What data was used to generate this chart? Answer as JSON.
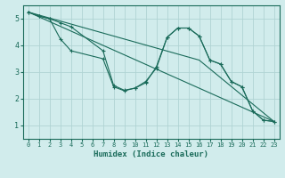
{
  "bg_color": "#d1ecec",
  "grid_color": "#b0d4d4",
  "line_color": "#1a6b5a",
  "xlabel": "Humidex (Indice chaleur)",
  "xlim": [
    -0.5,
    23.5
  ],
  "ylim": [
    0.5,
    5.5
  ],
  "xticks": [
    0,
    1,
    2,
    3,
    4,
    5,
    6,
    7,
    8,
    9,
    10,
    11,
    12,
    13,
    14,
    15,
    16,
    17,
    18,
    19,
    20,
    21,
    22,
    23
  ],
  "yticks": [
    1,
    2,
    3,
    4,
    5
  ],
  "lines": [
    {
      "x": [
        0,
        1,
        2,
        3,
        4,
        7,
        8,
        9,
        10,
        11,
        12,
        13,
        14,
        15,
        16,
        17,
        18,
        19,
        20,
        21,
        22,
        23
      ],
      "y": [
        5.25,
        5.1,
        5.0,
        4.25,
        3.8,
        3.5,
        2.45,
        2.3,
        2.4,
        2.6,
        3.2,
        4.3,
        4.65,
        4.65,
        4.35,
        3.45,
        3.3,
        2.65,
        2.45,
        1.55,
        1.2,
        1.15
      ],
      "markers": true
    },
    {
      "x": [
        0,
        1,
        2,
        3,
        4,
        7,
        8,
        9,
        10,
        11,
        12,
        13,
        14,
        15,
        16,
        17,
        18,
        19,
        20,
        21,
        22,
        23
      ],
      "y": [
        5.25,
        5.1,
        5.0,
        4.85,
        4.7,
        3.8,
        2.5,
        2.32,
        2.4,
        2.65,
        3.15,
        4.3,
        4.65,
        4.65,
        4.35,
        3.45,
        3.3,
        2.65,
        2.45,
        1.55,
        1.2,
        1.15
      ],
      "markers": true
    },
    {
      "x": [
        0,
        23
      ],
      "y": [
        5.25,
        1.15
      ],
      "markers": false
    },
    {
      "x": [
        0,
        16,
        23
      ],
      "y": [
        5.25,
        3.45,
        1.15
      ],
      "markers": false
    }
  ]
}
